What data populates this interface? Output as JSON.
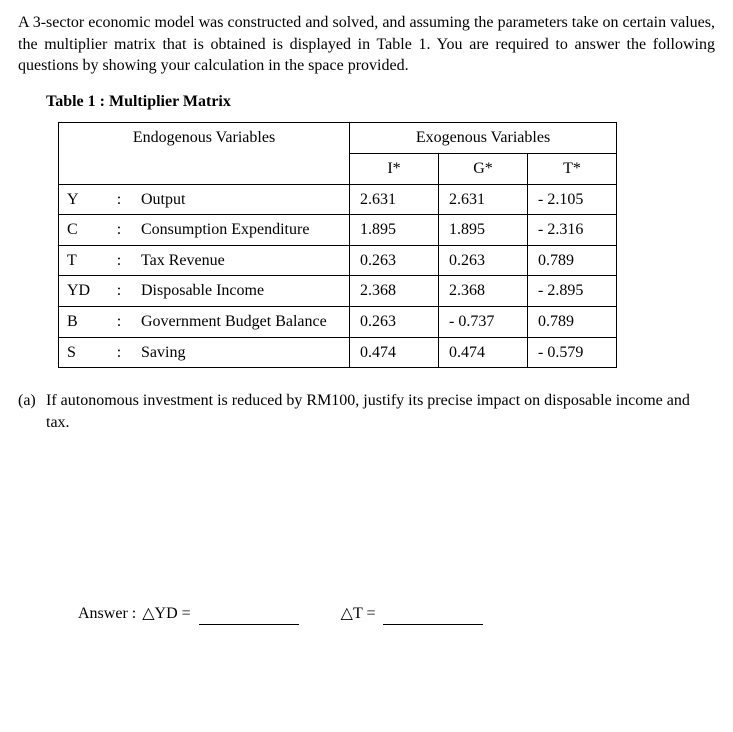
{
  "intro": "A 3-sector economic model was constructed and solved, and assuming the parameters take on certain values, the multiplier matrix that is obtained is displayed in Table 1. You are required to answer the following questions by showing your calculation in the space provided.",
  "table_title": "Table 1 : Multiplier Matrix",
  "headers": {
    "endo": "Endogenous Variables",
    "exo": "Exogenous Variables",
    "exo_cols": [
      "I*",
      "G*",
      "T*"
    ]
  },
  "rows": [
    {
      "code": "Y",
      "sep": ":",
      "name": "Output",
      "vals": [
        "2.631",
        "2.631",
        "- 2.105"
      ]
    },
    {
      "code": "C",
      "sep": ":",
      "name": "Consumption Expenditure",
      "vals": [
        "1.895",
        "1.895",
        "- 2.316"
      ]
    },
    {
      "code": "T",
      "sep": ":",
      "name": "Tax Revenue",
      "vals": [
        "0.263",
        "0.263",
        "0.789"
      ]
    },
    {
      "code": "YD",
      "sep": ":",
      "name": "Disposable Income",
      "vals": [
        "2.368",
        "2.368",
        "- 2.895"
      ]
    },
    {
      "code": "B",
      "sep": ":",
      "name": "Government Budget Balance",
      "vals": [
        "0.263",
        "- 0.737",
        "0.789"
      ]
    },
    {
      "code": "S",
      "sep": ":",
      "name": "Saving",
      "vals": [
        "0.474",
        "0.474",
        "- 0.579"
      ]
    }
  ],
  "question": {
    "label": "(a)",
    "text": "If autonomous investment is reduced by RM100, justify its precise impact on disposable income and tax."
  },
  "answer": {
    "prefix": "Answer :",
    "yd_label": "△YD =",
    "t_label": "△T ="
  }
}
